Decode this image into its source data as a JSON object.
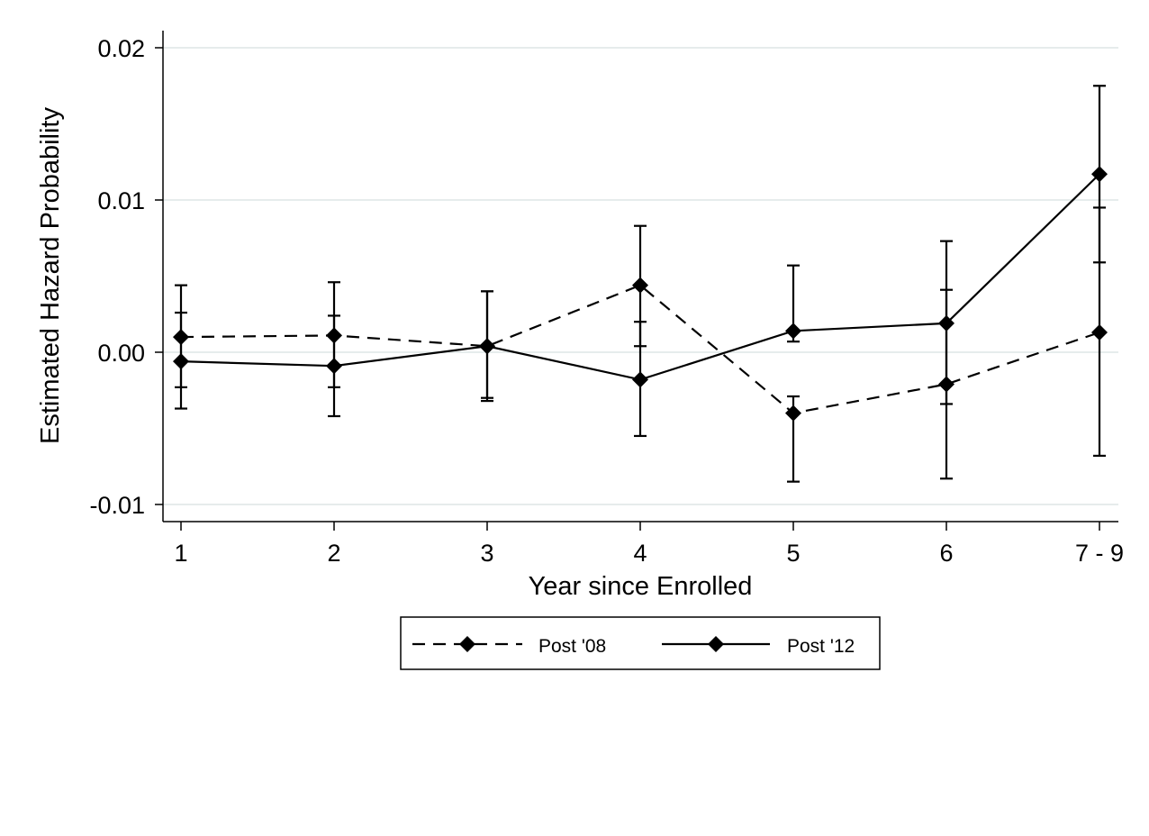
{
  "chart_data": {
    "type": "line",
    "title": "",
    "xlabel": "Year since Enrolled",
    "ylabel": "Estimated Hazard Probability",
    "categories": [
      "1",
      "2",
      "3",
      "4",
      "5",
      "6",
      "7 - 9"
    ],
    "ylim": [
      -0.0112,
      0.0212
    ],
    "yticks": [
      {
        "value": 0.02,
        "label": "0.02"
      },
      {
        "value": 0.01,
        "label": "0.01"
      },
      {
        "value": 0.0,
        "label": "0.00"
      },
      {
        "value": -0.01,
        "label": "-0.01"
      }
    ],
    "grid": true,
    "legend_position": "bottom",
    "series": [
      {
        "name": "Post '08",
        "line_style": "dashed",
        "marker": "diamond",
        "values": [
          0.001,
          0.0011,
          0.0004,
          0.0044,
          -0.004,
          -0.0021,
          0.0013
        ],
        "ci_lower": [
          -0.0023,
          -0.0023,
          -0.003,
          0.0004,
          -0.0085,
          -0.0083,
          -0.0068
        ],
        "ci_upper": [
          0.0044,
          0.0046,
          0.004,
          0.0083,
          -0.0029,
          0.0041,
          0.0095
        ]
      },
      {
        "name": "Post '12",
        "line_style": "solid",
        "marker": "diamond",
        "values": [
          -0.0006,
          -0.0009,
          0.0004,
          -0.0018,
          0.0014,
          0.0019,
          0.0117
        ],
        "ci_lower": [
          -0.0037,
          -0.0042,
          -0.0032,
          -0.0055,
          0.0007,
          -0.0034,
          0.0059
        ],
        "ci_upper": [
          0.0026,
          0.0024,
          0.004,
          0.002,
          0.0057,
          0.0073,
          0.0175
        ]
      }
    ]
  }
}
